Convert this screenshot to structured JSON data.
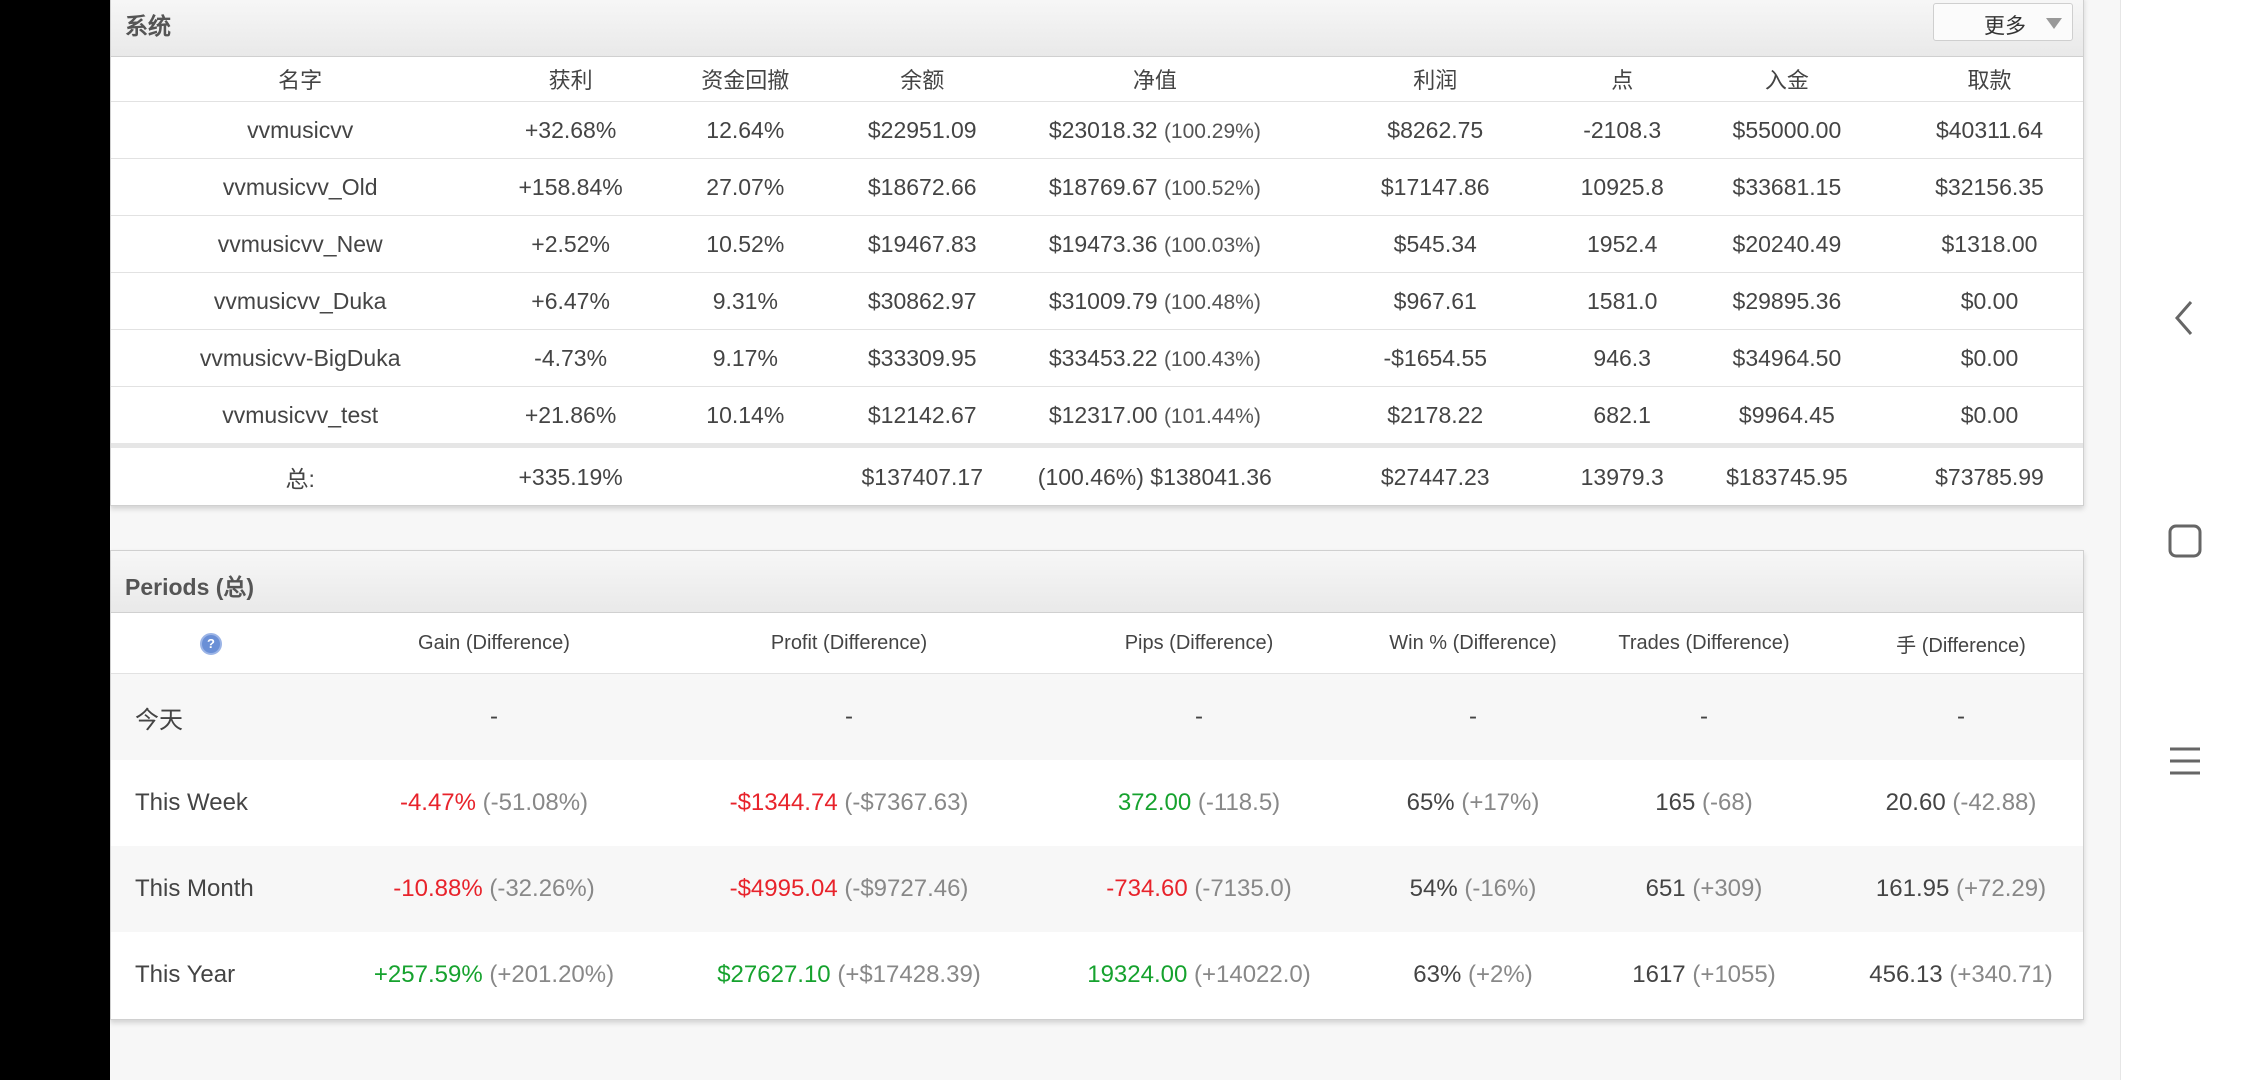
{
  "systems": {
    "title": "系统",
    "more_label": "更多",
    "columns": [
      "名字",
      "获利",
      "资金回撤",
      "余额",
      "净值",
      "利润",
      "点",
      "入金",
      "取款"
    ],
    "rows": [
      {
        "name": "vvmusicvv",
        "gain": "+32.68%",
        "gain_sign": "pos",
        "drawdown": "12.64%",
        "balance": "$22951.09",
        "equity": "$23018.32",
        "equity_pct": "(100.29%)",
        "profit": "$8262.75",
        "profit_sign": "pos",
        "pips": "-2108.3",
        "deposits": "$55000.00",
        "withdrawals": "$40311.64"
      },
      {
        "name": "vvmusicvv_Old",
        "gain": "+158.84%",
        "gain_sign": "pos",
        "drawdown": "27.07%",
        "balance": "$18672.66",
        "equity": "$18769.67",
        "equity_pct": "(100.52%)",
        "profit": "$17147.86",
        "profit_sign": "pos",
        "pips": "10925.8",
        "deposits": "$33681.15",
        "withdrawals": "$32156.35"
      },
      {
        "name": "vvmusicvv_New",
        "gain": "+2.52%",
        "gain_sign": "pos",
        "drawdown": "10.52%",
        "balance": "$19467.83",
        "equity": "$19473.36",
        "equity_pct": "(100.03%)",
        "profit": "$545.34",
        "profit_sign": "pos",
        "pips": "1952.4",
        "deposits": "$20240.49",
        "withdrawals": "$1318.00"
      },
      {
        "name": "vvmusicvv_Duka",
        "gain": "+6.47%",
        "gain_sign": "pos",
        "drawdown": "9.31%",
        "balance": "$30862.97",
        "equity": "$31009.79",
        "equity_pct": "(100.48%)",
        "profit": "$967.61",
        "profit_sign": "pos",
        "pips": "1581.0",
        "deposits": "$29895.36",
        "withdrawals": "$0.00"
      },
      {
        "name": "vvmusicvv-BigDuka",
        "gain": "-4.73%",
        "gain_sign": "neg",
        "drawdown": "9.17%",
        "balance": "$33309.95",
        "equity": "$33453.22",
        "equity_pct": "(100.43%)",
        "profit": "-$1654.55",
        "profit_sign": "neg",
        "pips": "946.3",
        "deposits": "$34964.50",
        "withdrawals": "$0.00"
      },
      {
        "name": "vvmusicvv_test",
        "gain": "+21.86%",
        "gain_sign": "pos",
        "drawdown": "10.14%",
        "balance": "$12142.67",
        "equity": "$12317.00",
        "equity_pct": "(101.44%)",
        "profit": "$2178.22",
        "profit_sign": "pos",
        "pips": "682.1",
        "deposits": "$9964.45",
        "withdrawals": "$0.00"
      }
    ],
    "total": {
      "label": "总:",
      "gain": "+335.19%",
      "balance": "$137407.17",
      "equity": "(100.46%) $138041.36",
      "profit": "$27447.23",
      "pips": "13979.3",
      "deposits": "$183745.95",
      "withdrawals": "$73785.99"
    }
  },
  "periods": {
    "title": "Periods (总)",
    "help_icon": "?",
    "columns": [
      "Gain (Difference)",
      "Profit (Difference)",
      "Pips (Difference)",
      "Win % (Difference)",
      "Trades (Difference)",
      "手 (Difference)"
    ],
    "rows": [
      {
        "label": "今天",
        "cells": [
          {
            "v": "-",
            "s": "",
            "d": ""
          },
          {
            "v": "-",
            "s": "",
            "d": ""
          },
          {
            "v": "-",
            "s": "",
            "d": ""
          },
          {
            "v": "-",
            "s": "",
            "d": ""
          },
          {
            "v": "-",
            "s": "",
            "d": ""
          },
          {
            "v": "-",
            "s": "",
            "d": ""
          }
        ]
      },
      {
        "label": "This Week",
        "cells": [
          {
            "v": "-4.47%",
            "s": "neg",
            "d": "(-51.08%)"
          },
          {
            "v": "-$1344.74",
            "s": "neg",
            "d": "(-$7367.63)"
          },
          {
            "v": "372.00",
            "s": "pos",
            "d": "(-118.5)"
          },
          {
            "v": "65%",
            "s": "",
            "d": "(+17%)"
          },
          {
            "v": "165",
            "s": "",
            "d": "(-68)"
          },
          {
            "v": "20.60",
            "s": "",
            "d": "(-42.88)"
          }
        ]
      },
      {
        "label": "This Month",
        "cells": [
          {
            "v": "-10.88%",
            "s": "neg",
            "d": "(-32.26%)"
          },
          {
            "v": "-$4995.04",
            "s": "neg",
            "d": "(-$9727.46)"
          },
          {
            "v": "-734.60",
            "s": "neg",
            "d": "(-7135.0)"
          },
          {
            "v": "54%",
            "s": "",
            "d": "(-16%)"
          },
          {
            "v": "651",
            "s": "",
            "d": "(+309)"
          },
          {
            "v": "161.95",
            "s": "",
            "d": "(+72.29)"
          }
        ]
      },
      {
        "label": "This Year",
        "cells": [
          {
            "v": "+257.59%",
            "s": "pos",
            "d": "(+201.20%)"
          },
          {
            "v": "$27627.10",
            "s": "pos",
            "d": "(+$17428.39)"
          },
          {
            "v": "19324.00",
            "s": "pos",
            "d": "(+14022.0)"
          },
          {
            "v": "63%",
            "s": "",
            "d": "(+2%)"
          },
          {
            "v": "1617",
            "s": "",
            "d": "(+1055)"
          },
          {
            "v": "456.13",
            "s": "",
            "d": "(+340.71)"
          }
        ]
      }
    ]
  },
  "nav": {
    "back_icon": "back-chevron-icon",
    "recents_icon": "square-icon",
    "menu_icon": "hamburger-icon"
  },
  "colors": {
    "positive": "#16a22e",
    "negative": "#e8232b"
  }
}
